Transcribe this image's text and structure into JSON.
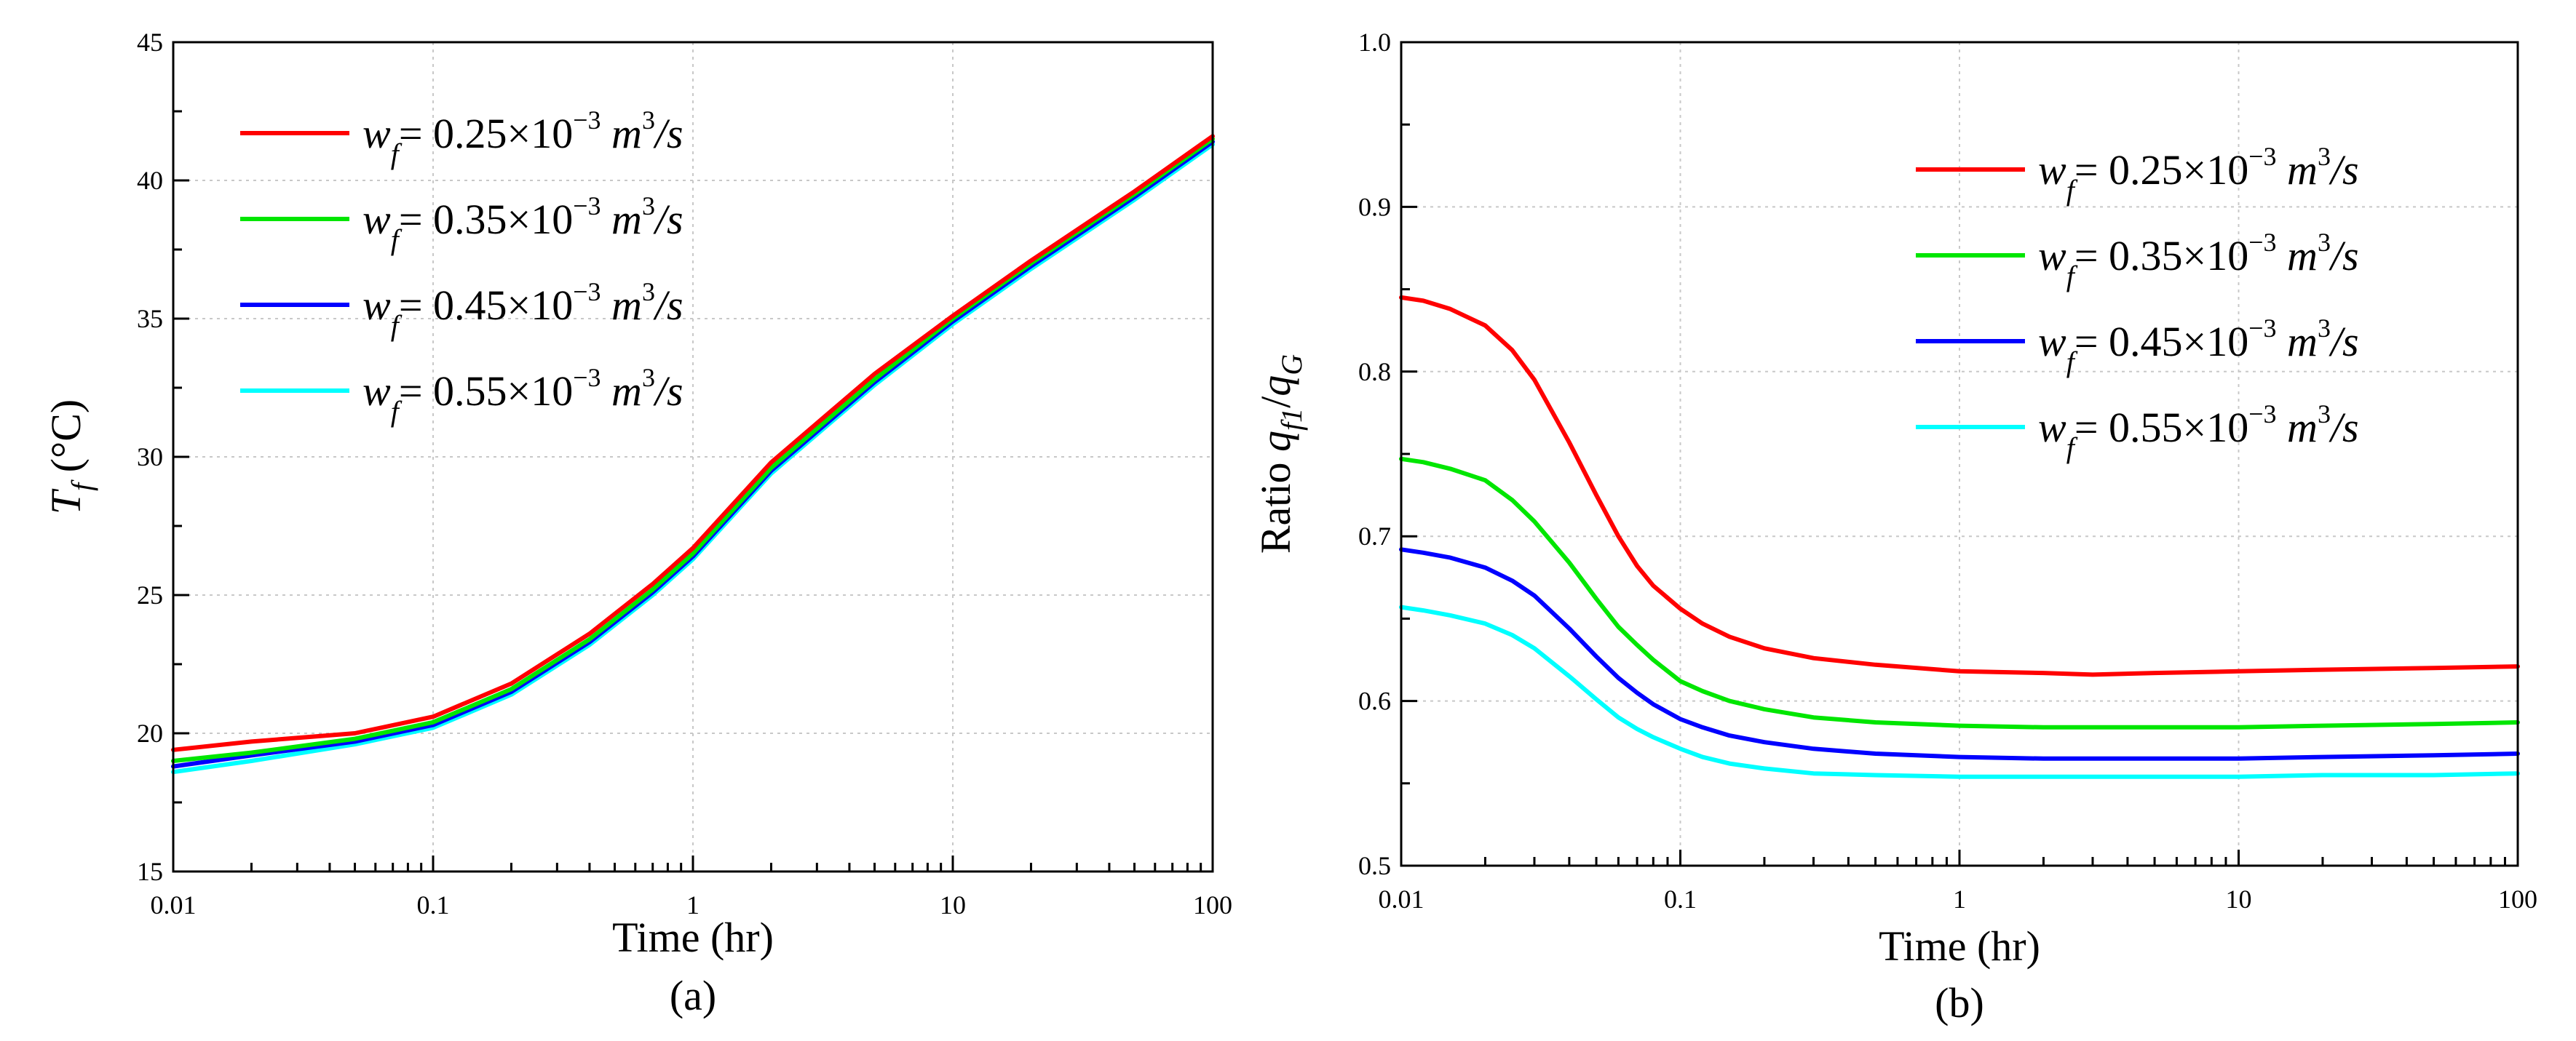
{
  "chart_data": [
    {
      "type": "line",
      "panel_label": "(a)",
      "xscale": "log",
      "xlim": [
        0.01,
        100
      ],
      "ylim": [
        15,
        45
      ],
      "xlabel": "Time (hr)",
      "ylabel": "T_f (°C)",
      "ylabel_parts": {
        "main": "T",
        "sub": "f",
        "tail": " (°C)"
      },
      "xticks": [
        0.01,
        0.1,
        1,
        10,
        100
      ],
      "xtick_labels": [
        "0.01",
        "0.1",
        "1",
        "10",
        "100"
      ],
      "yticks": [
        15,
        20,
        25,
        30,
        35,
        40,
        45
      ],
      "ytick_labels": [
        "15",
        "20",
        "25",
        "30",
        "35",
        "40",
        "45"
      ],
      "grid": true,
      "legend_position": "top-left",
      "x": [
        0.01,
        0.02,
        0.05,
        0.1,
        0.2,
        0.4,
        0.7,
        1,
        2,
        5,
        10,
        20,
        50,
        100
      ],
      "series": [
        {
          "name": "w_f = 0.25×10^-3 m^3/s",
          "color": "#ff0000",
          "label_main": "w",
          "label_sub": "f",
          "label_value": "= 0.25×10",
          "label_exp": "−3",
          "label_unit": " m",
          "label_unit_exp": "3",
          "label_tail": "/s",
          "values": [
            19.4,
            19.7,
            20.0,
            20.6,
            21.8,
            23.6,
            25.4,
            26.7,
            29.8,
            33.0,
            35.1,
            37.1,
            39.6,
            41.6
          ]
        },
        {
          "name": "w_f = 0.35×10^-3 m^3/s",
          "color": "#00e600",
          "label_main": "w",
          "label_sub": "f",
          "label_value": "= 0.35×10",
          "label_exp": "−3",
          "label_unit": " m",
          "label_unit_exp": "3",
          "label_tail": "/s",
          "values": [
            19.0,
            19.3,
            19.8,
            20.4,
            21.6,
            23.4,
            25.2,
            26.5,
            29.6,
            32.8,
            35.0,
            37.0,
            39.5,
            41.5
          ]
        },
        {
          "name": "w_f = 0.45×10^-3 m^3/s",
          "color": "#0000ff",
          "label_main": "w",
          "label_sub": "f",
          "label_value": "= 0.45×10",
          "label_exp": "−3",
          "label_unit": " m",
          "label_unit_exp": "3",
          "label_tail": "/s",
          "values": [
            18.8,
            19.2,
            19.7,
            20.3,
            21.5,
            23.3,
            25.1,
            26.4,
            29.5,
            32.7,
            34.9,
            36.9,
            39.4,
            41.4
          ]
        },
        {
          "name": "w_f = 0.55×10^-3 m^3/s",
          "color": "#00ffff",
          "label_main": "w",
          "label_sub": "f",
          "label_value": "= 0.55×10",
          "label_exp": "−3",
          "label_unit": " m",
          "label_unit_exp": "3",
          "label_tail": "/s",
          "values": [
            18.6,
            19.0,
            19.6,
            20.2,
            21.4,
            23.2,
            25.0,
            26.3,
            29.4,
            32.6,
            34.8,
            36.8,
            39.3,
            41.3
          ]
        }
      ]
    },
    {
      "type": "line",
      "panel_label": "(b)",
      "xscale": "log",
      "xlim": [
        0.01,
        100
      ],
      "ylim": [
        0.5,
        1.0
      ],
      "xlabel": "Time (hr)",
      "ylabel": "Ratio q_f1/q_G",
      "ylabel_parts": {
        "prefix": "Ratio ",
        "q1": "q",
        "sub1": "f1",
        "slash": "/",
        "q2": "q",
        "sub2": "G"
      },
      "xticks": [
        0.01,
        0.1,
        1,
        10,
        100
      ],
      "xtick_labels": [
        "0.01",
        "0.1",
        "1",
        "10",
        "100"
      ],
      "yticks": [
        0.5,
        0.6,
        0.7,
        0.8,
        0.9,
        1.0
      ],
      "ytick_labels": [
        "0.5",
        "0.6",
        "0.7",
        "0.8",
        "0.9",
        "1.0"
      ],
      "grid": true,
      "legend_position": "top-right",
      "x": [
        0.01,
        0.012,
        0.015,
        0.02,
        0.025,
        0.03,
        0.04,
        0.05,
        0.06,
        0.07,
        0.08,
        0.1,
        0.12,
        0.15,
        0.2,
        0.3,
        0.5,
        1,
        2,
        3,
        5,
        10,
        20,
        50,
        100
      ],
      "series": [
        {
          "name": "w_f = 0.25×10^-3 m^3/s",
          "color": "#ff0000",
          "label_main": "w",
          "label_sub": "f",
          "label_value": "= 0.25×10",
          "label_exp": "−3",
          "label_unit": " m",
          "label_unit_exp": "3",
          "label_tail": "/s",
          "values": [
            0.845,
            0.843,
            0.838,
            0.828,
            0.813,
            0.795,
            0.757,
            0.725,
            0.7,
            0.682,
            0.67,
            0.656,
            0.647,
            0.639,
            0.632,
            0.626,
            0.622,
            0.618,
            0.617,
            0.616,
            0.617,
            0.618,
            0.619,
            0.62,
            0.621
          ]
        },
        {
          "name": "w_f = 0.35×10^-3 m^3/s",
          "color": "#00e600",
          "label_main": "w",
          "label_sub": "f",
          "label_value": "= 0.35×10",
          "label_exp": "−3",
          "label_unit": " m",
          "label_unit_exp": "3",
          "label_tail": "/s",
          "values": [
            0.747,
            0.745,
            0.741,
            0.734,
            0.722,
            0.709,
            0.684,
            0.662,
            0.645,
            0.634,
            0.625,
            0.612,
            0.606,
            0.6,
            0.595,
            0.59,
            0.587,
            0.585,
            0.584,
            0.584,
            0.584,
            0.584,
            0.585,
            0.586,
            0.587
          ]
        },
        {
          "name": "w_f = 0.45×10^-3 m^3/s",
          "color": "#0000ff",
          "label_main": "w",
          "label_sub": "f",
          "label_value": "= 0.45×10",
          "label_exp": "−3",
          "label_unit": " m",
          "label_unit_exp": "3",
          "label_tail": "/s",
          "values": [
            0.692,
            0.69,
            0.687,
            0.681,
            0.673,
            0.664,
            0.644,
            0.627,
            0.614,
            0.605,
            0.598,
            0.589,
            0.584,
            0.579,
            0.575,
            0.571,
            0.568,
            0.566,
            0.565,
            0.565,
            0.565,
            0.565,
            0.566,
            0.567,
            0.568
          ]
        },
        {
          "name": "w_f = 0.55×10^-3 m^3/s",
          "color": "#00ffff",
          "label_main": "w",
          "label_sub": "f",
          "label_value": "= 0.55×10",
          "label_exp": "−3",
          "label_unit": " m",
          "label_unit_exp": "3",
          "label_tail": "/s",
          "values": [
            0.657,
            0.655,
            0.652,
            0.647,
            0.64,
            0.632,
            0.615,
            0.601,
            0.59,
            0.583,
            0.578,
            0.571,
            0.566,
            0.562,
            0.559,
            0.556,
            0.555,
            0.554,
            0.554,
            0.554,
            0.554,
            0.554,
            0.555,
            0.555,
            0.556
          ]
        }
      ]
    }
  ]
}
